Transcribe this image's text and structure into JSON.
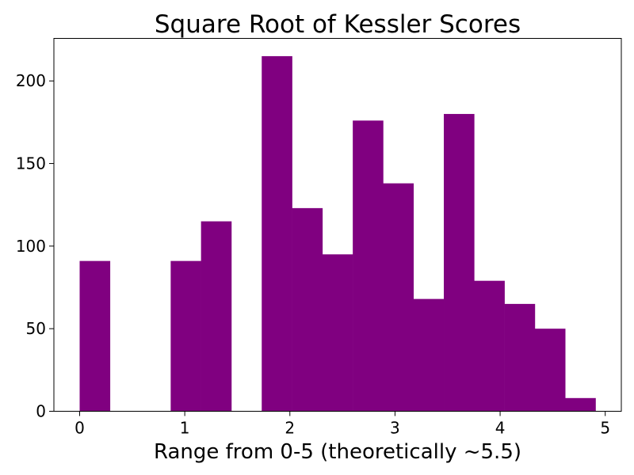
{
  "chart_data": {
    "type": "bar",
    "title": "Square Root of Kessler Scores",
    "xlabel": "Range from 0-5 (theoretically ~5.5)",
    "ylabel": "",
    "bar_color": "#800080",
    "bins": [
      {
        "x0": 0.0,
        "x1": 0.2887,
        "count": 91
      },
      {
        "x0": 0.2887,
        "x1": 0.5774,
        "count": 0
      },
      {
        "x0": 0.5774,
        "x1": 0.8661,
        "count": 0
      },
      {
        "x0": 0.8661,
        "x1": 1.1548,
        "count": 91
      },
      {
        "x0": 1.1548,
        "x1": 1.4435,
        "count": 115
      },
      {
        "x0": 1.4435,
        "x1": 1.7322,
        "count": 0
      },
      {
        "x0": 1.7322,
        "x1": 2.0209,
        "count": 215
      },
      {
        "x0": 2.0209,
        "x1": 2.3096,
        "count": 123
      },
      {
        "x0": 2.3096,
        "x1": 2.5983,
        "count": 95
      },
      {
        "x0": 2.5983,
        "x1": 2.887,
        "count": 176
      },
      {
        "x0": 2.887,
        "x1": 3.1757,
        "count": 138
      },
      {
        "x0": 3.1757,
        "x1": 3.4644,
        "count": 68
      },
      {
        "x0": 3.4644,
        "x1": 3.7531,
        "count": 180
      },
      {
        "x0": 3.7531,
        "x1": 4.0418,
        "count": 79
      },
      {
        "x0": 4.0418,
        "x1": 4.3305,
        "count": 65
      },
      {
        "x0": 4.3305,
        "x1": 4.6192,
        "count": 50
      },
      {
        "x0": 4.6192,
        "x1": 4.9079,
        "count": 8
      }
    ],
    "xlim": [
      -0.245,
      5.153
    ],
    "ylim": [
      0,
      225.75
    ],
    "xticks": [
      0,
      1,
      2,
      3,
      4,
      5
    ],
    "yticks": [
      0,
      50,
      100,
      150,
      200
    ],
    "grid": false,
    "legend": "none"
  }
}
